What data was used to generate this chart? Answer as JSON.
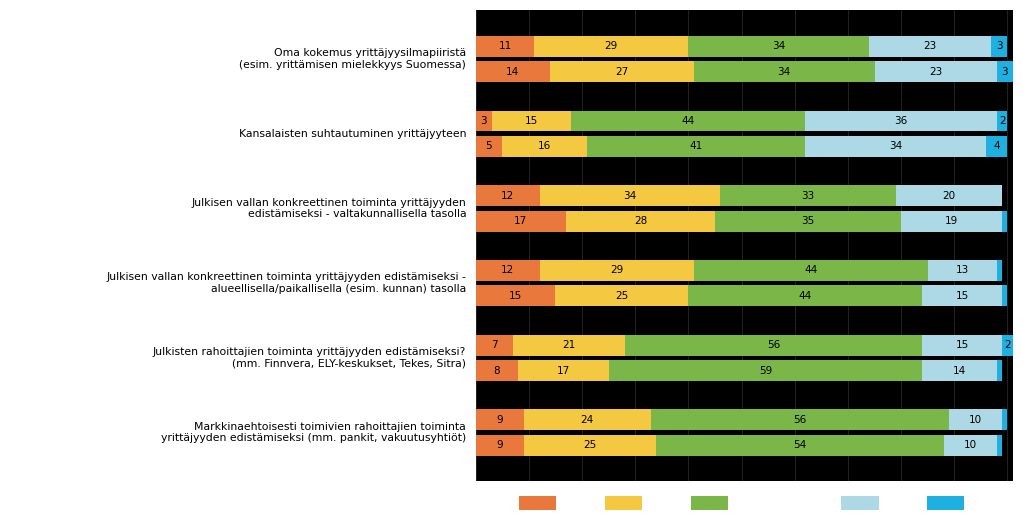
{
  "categories": [
    "Oma kokemus yrittäjyysilmapiiristä\n(esim. yrittämisen mielekkyys Suomessa)",
    "Kansalaisten suhtautuminen yrittäjyyteen",
    "Julkisen vallan konkreettinen toiminta yrittäjyyden\nedistämiseksi - valtakunnallisella tasolla",
    "Julkisen vallan konkreettinen toiminta yrittäjyyden edistämiseksi -\nalueellisella/paikallisella (esim. kunnan) tasolla",
    "Julkisten rahoittajien toiminta yrittäjyyden edistämiseksi?\n(mm. Finnvera, ELY-keskukset, Tekes, Sitra)",
    "Markkinaehtoisesti toimivien rahoittajien toiminta\nyrittäjyyden edistämiseksi (mm. pankit, vakuutusyhtiöt)"
  ],
  "data_koko": [
    [
      11,
      29,
      34,
      23,
      3
    ],
    [
      3,
      15,
      44,
      36,
      2
    ],
    [
      12,
      34,
      33,
      20,
      0
    ],
    [
      12,
      29,
      44,
      13,
      1
    ],
    [
      7,
      21,
      56,
      15,
      2
    ],
    [
      9,
      24,
      56,
      10,
      1
    ]
  ],
  "data_pohjoissavo": [
    [
      14,
      27,
      34,
      23,
      3
    ],
    [
      5,
      16,
      41,
      34,
      4
    ],
    [
      17,
      28,
      35,
      19,
      1
    ],
    [
      15,
      25,
      44,
      15,
      1
    ],
    [
      8,
      17,
      59,
      14,
      1
    ],
    [
      9,
      25,
      54,
      10,
      1
    ]
  ],
  "colors": [
    "#E8783C",
    "#F5C842",
    "#7AB648",
    "#ADD8E6",
    "#1EB0E0"
  ],
  "bar_height": 0.28,
  "fig_bg": "#FFFFFF",
  "bar_area_bg": "#000000",
  "label_text_color": "#000000",
  "bar_text_color": "#000000",
  "legend_marker_color": "#FFFFFF",
  "figsize": [
    10.23,
    5.23
  ],
  "dpi": 100
}
